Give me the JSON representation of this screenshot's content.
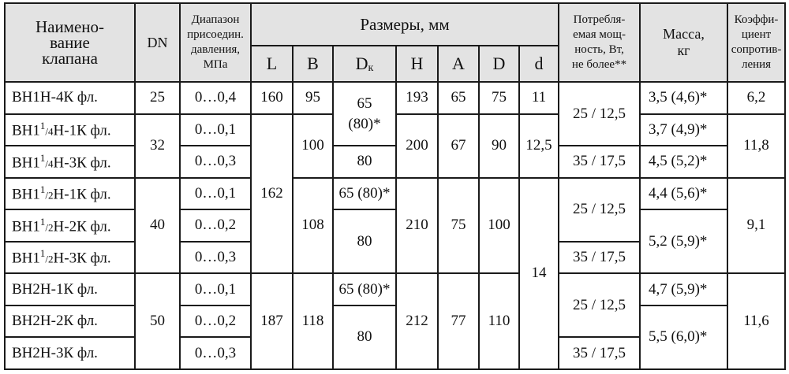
{
  "header": {
    "name": "Наимено-\nвание\nклапана",
    "dn": "DN",
    "pressure": "Диапазон\nприсоедин.\nдавления,\nМПа",
    "dimensions": "Размеры, мм",
    "power": "Потребля-\nемая мощ-\nность, Вт,\nне более**",
    "mass": "Масса,\nкг",
    "coef": "Коэффи-\nциент\nсопротив-\nления",
    "sub": {
      "L": "L",
      "B": "B",
      "Dk_main": "D",
      "Dk_sub": "к",
      "H": "H",
      "A": "A",
      "D": "D",
      "d": "d"
    }
  },
  "rows": [
    {
      "name": "ВН1Н-4К фл.",
      "pressure": "0…0,4",
      "mass": "3,5 (4,6)*"
    },
    {
      "name_pre": "ВН1",
      "name_sup": "1",
      "name_sub": "/4",
      "name_post": "Н-1К фл.",
      "pressure": "0…0,1",
      "mass": "3,7 (4,9)*"
    },
    {
      "name_pre": "ВН1",
      "name_sup": "1",
      "name_sub": "/4",
      "name_post": "Н-3К фл.",
      "pressure": "0…0,3",
      "mass": "4,5 (5,2)*"
    },
    {
      "name_pre": "ВН1",
      "name_sup": "1",
      "name_sub": "/2",
      "name_post": "Н-1К фл.",
      "pressure": "0…0,1",
      "mass": "4,4 (5,6)*"
    },
    {
      "name_pre": "ВН1",
      "name_sup": "1",
      "name_sub": "/2",
      "name_post": "Н-2К фл.",
      "pressure": "0…0,2"
    },
    {
      "name_pre": "ВН1",
      "name_sup": "1",
      "name_sub": "/2",
      "name_post": "Н-3К фл.",
      "pressure": "0…0,3"
    },
    {
      "name": "ВН2Н-1К фл.",
      "pressure": "0…0,1",
      "mass": "4,7 (5,9)*"
    },
    {
      "name": "ВН2Н-2К фл.",
      "pressure": "0…0,2"
    },
    {
      "name": "ВН2Н-3К фл.",
      "pressure": "0…0,3"
    }
  ],
  "groups": {
    "dn": [
      "25",
      "32",
      "40",
      "50"
    ],
    "L": [
      "160",
      "162",
      "187"
    ],
    "B": [
      "95",
      "100",
      "108",
      "118"
    ],
    "Dk": [
      "65\n(80)*",
      "80",
      "65 (80)*",
      "80",
      "65 (80)*",
      "80"
    ],
    "H": [
      "193",
      "200",
      "210",
      "212"
    ],
    "A": [
      "65",
      "67",
      "75",
      "77"
    ],
    "D": [
      "75",
      "90",
      "100",
      "110"
    ],
    "d": [
      "11",
      "12,5",
      "14"
    ],
    "power": [
      "25 / 12,5",
      "35 / 17,5",
      "25 / 12,5",
      "35 / 17,5",
      "25 / 12,5",
      "35 / 17,5"
    ],
    "mass_merged": [
      "5,2 (5,9)*",
      "5,5 (6,0)*"
    ],
    "coef": [
      "6,2",
      "11,8",
      "9,1",
      "11,6"
    ]
  }
}
